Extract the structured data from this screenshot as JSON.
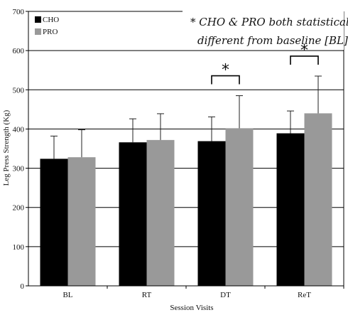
{
  "chart_data": {
    "type": "bar",
    "categories": [
      "BL",
      "RT",
      "DT",
      "ReT"
    ],
    "series": [
      {
        "name": "CHO",
        "color": "#000000",
        "values": [
          324,
          366,
          369,
          389
        ],
        "errors": [
          58,
          60,
          62,
          57
        ]
      },
      {
        "name": "PRO",
        "color": "#999999",
        "values": [
          328,
          372,
          402,
          440
        ],
        "errors": [
          70,
          67,
          83,
          95
        ]
      }
    ],
    "xlabel": "Session Visits",
    "ylabel": "Leg Press Strength (Kg)",
    "ylim": [
      0,
      700
    ],
    "yticks": [
      0,
      100,
      200,
      300,
      400,
      500,
      600,
      700
    ],
    "grid": "horizontal",
    "legend_position": "top-left",
    "annotation": {
      "line1": "* CHO & PRO both statistically",
      "line2": "different from baseline [BL]"
    },
    "significance": [
      {
        "category": "DT",
        "symbol": "*"
      },
      {
        "category": "ReT",
        "symbol": "*"
      }
    ]
  }
}
